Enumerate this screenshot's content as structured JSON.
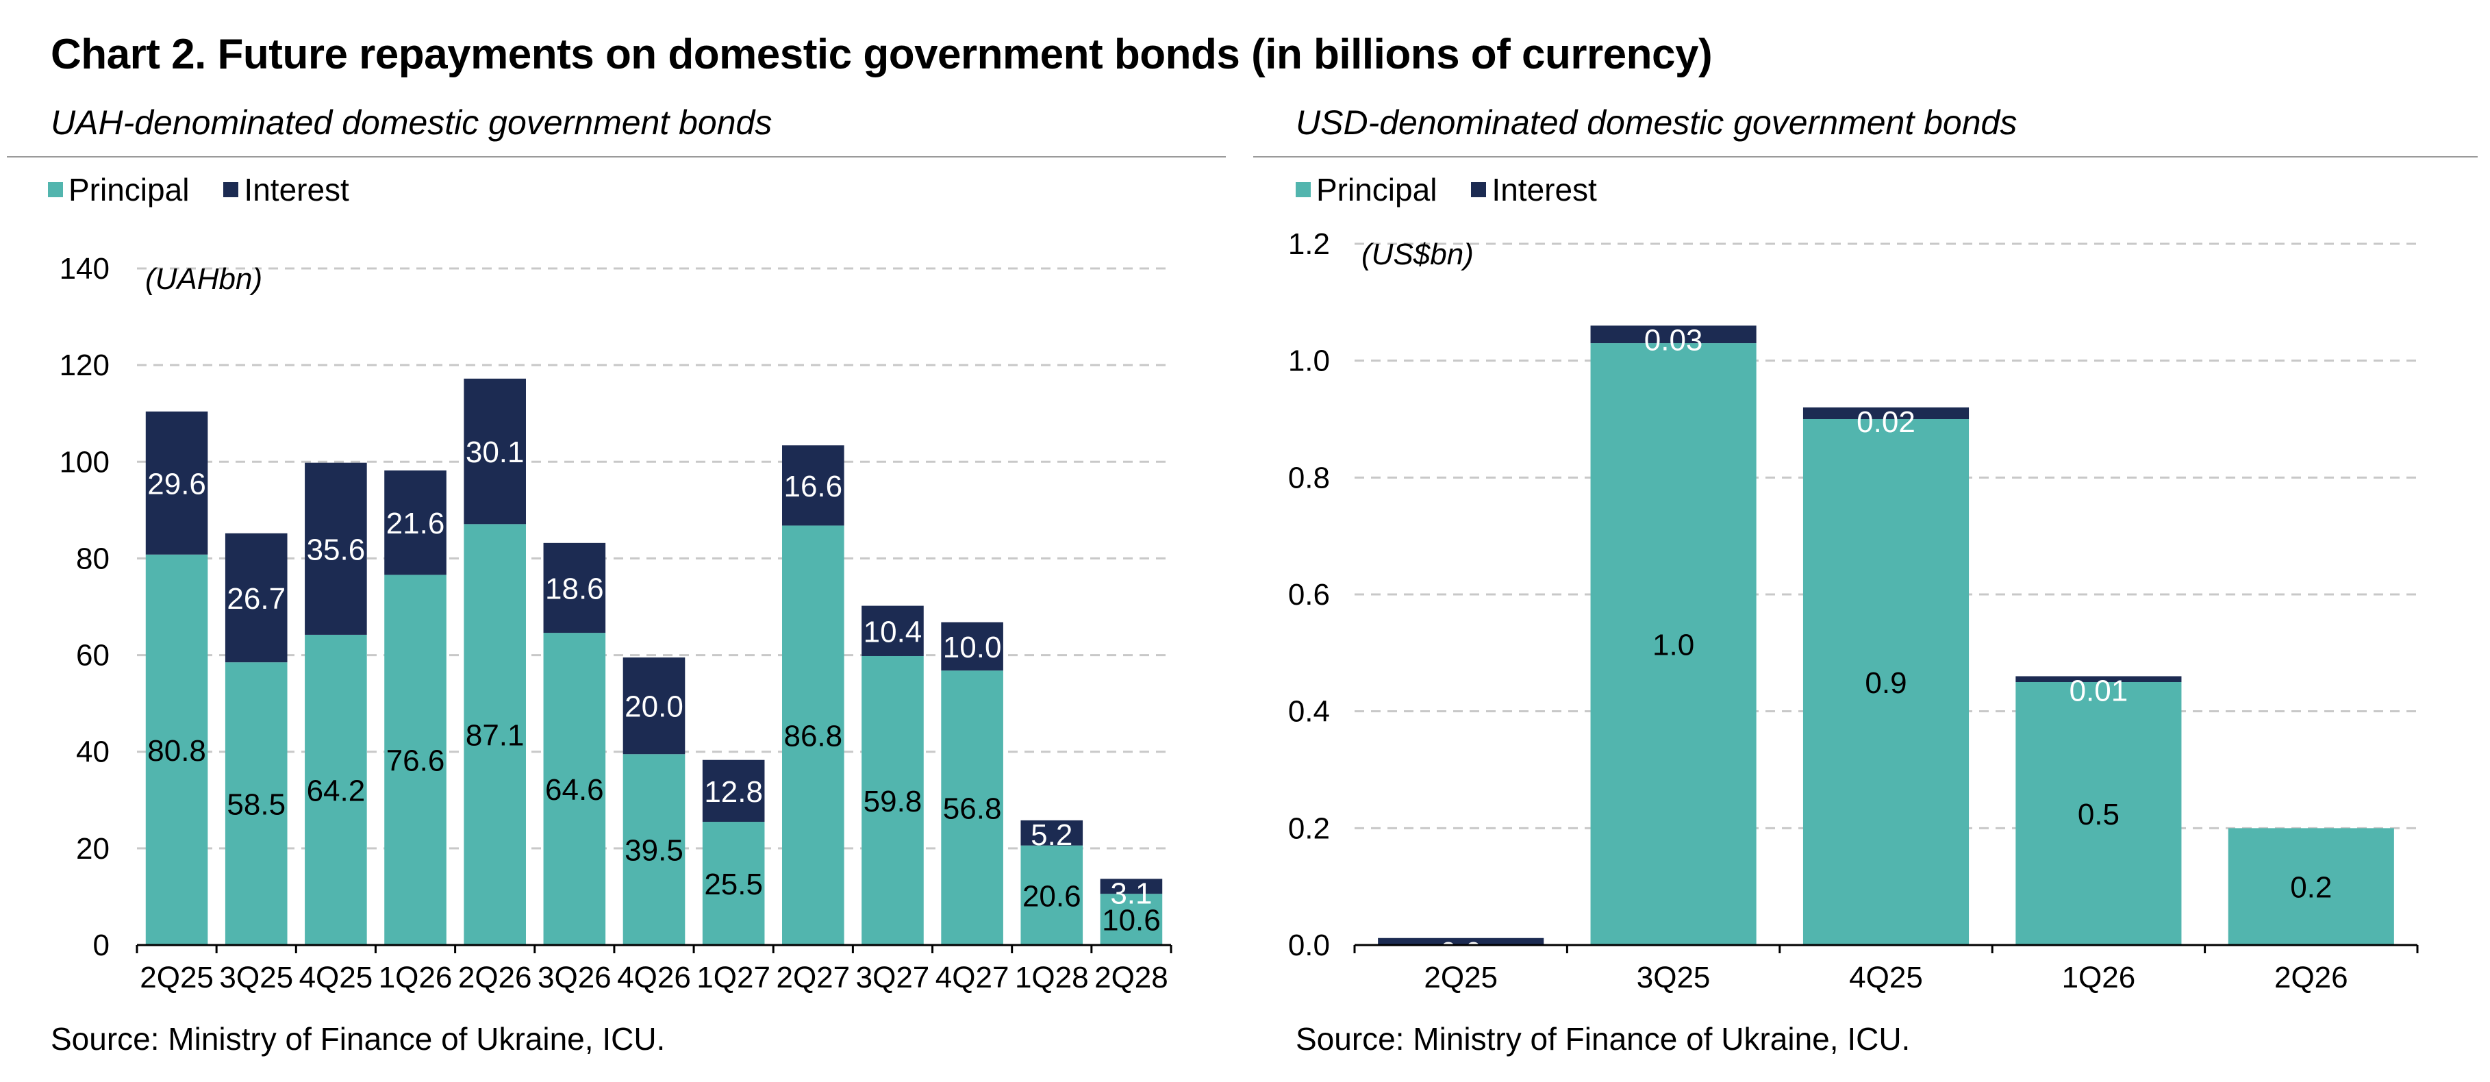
{
  "title": "Chart 2. Future repayments on domestic government bonds (in billions of currency)",
  "source": "Source: Ministry of Finance of Ukraine, ICU.",
  "colors": {
    "principal": "#52b5ae",
    "interest": "#1c2b52",
    "grid": "#c8c8c8"
  },
  "legend": {
    "principal": "Principal",
    "interest": "Interest"
  },
  "chart_data": [
    {
      "type": "bar",
      "stacked": true,
      "title": "UAH-denominated domestic government bonds",
      "unit": "(UAHbn)",
      "categories": [
        "2Q25",
        "3Q25",
        "4Q25",
        "1Q26",
        "2Q26",
        "3Q26",
        "4Q26",
        "1Q27",
        "2Q27",
        "3Q27",
        "4Q27",
        "1Q28",
        "2Q28"
      ],
      "series": [
        {
          "name": "Principal",
          "values": [
            80.8,
            58.5,
            64.2,
            76.6,
            87.1,
            64.6,
            39.5,
            25.5,
            86.8,
            59.8,
            56.8,
            20.6,
            10.6
          ],
          "labels": [
            "80.8",
            "58.5",
            "64.2",
            "76.6",
            "87.1",
            "64.6",
            "39.5",
            "25.5",
            "86.8",
            "59.8",
            "56.8",
            "20.6",
            "10.6"
          ]
        },
        {
          "name": "Interest",
          "values": [
            29.6,
            26.7,
            35.6,
            21.6,
            30.1,
            18.6,
            20.0,
            12.8,
            16.6,
            10.4,
            10.0,
            5.2,
            3.1
          ],
          "labels": [
            "29.6",
            "26.7",
            "35.6",
            "21.6",
            "30.1",
            "18.6",
            "20.0",
            "12.8",
            "16.6",
            "10.4",
            "10.0",
            "5.2",
            "3.1"
          ]
        }
      ],
      "ylim": [
        0,
        140
      ],
      "yticks": [
        "0",
        "20",
        "40",
        "60",
        "80",
        "100",
        "120",
        "140"
      ],
      "grid": true,
      "legend": "top-left"
    },
    {
      "type": "bar",
      "stacked": true,
      "title": "USD-denominated domestic government bonds",
      "unit": "(US$bn)",
      "categories": [
        "2Q25",
        "3Q25",
        "4Q25",
        "1Q26",
        "2Q26"
      ],
      "series": [
        {
          "name": "Principal",
          "values": [
            0.0,
            1.03,
            0.9,
            0.45,
            0.2
          ],
          "labels": [
            "",
            "1.0",
            "0.9",
            "0.5",
            "0.2"
          ]
        },
        {
          "name": "Interest",
          "values": [
            0.012,
            0.03,
            0.02,
            0.01,
            0.0
          ],
          "labels": [
            "0.0",
            "0.03",
            "0.02",
            "0.01",
            ""
          ]
        }
      ],
      "ylim": [
        0,
        1.2
      ],
      "yticks": [
        "0.0",
        "0.2",
        "0.4",
        "0.6",
        "0.8",
        "1.0",
        "1.2"
      ],
      "grid": true,
      "legend": "top-left"
    }
  ]
}
